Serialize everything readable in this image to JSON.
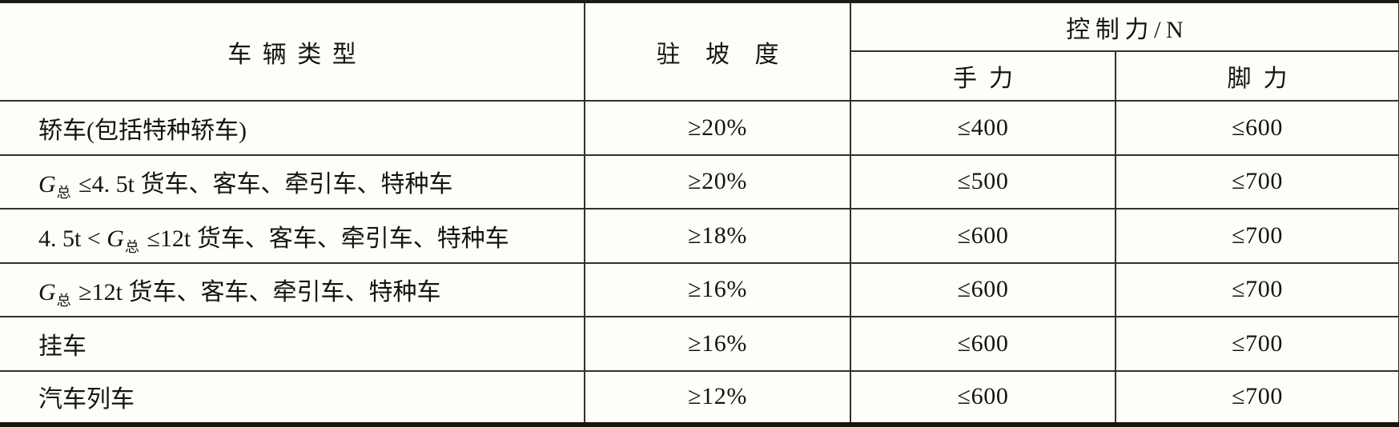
{
  "table": {
    "headers": {
      "vehicle_type": "车辆类型",
      "parking_slope": "驻坡度",
      "control_force": "控制力/N",
      "hand_force": "手力",
      "foot_force": "脚力"
    },
    "rows": [
      {
        "type": [
          [
            "t",
            "轿车(包括特种轿车)"
          ]
        ],
        "slope": "≥20%",
        "hand": "≤400",
        "foot": "≤600"
      },
      {
        "type": [
          [
            "i",
            "G"
          ],
          [
            "sub",
            "总"
          ],
          [
            "t",
            " ≤4. 5t 货车、客车、牵引车、特种车"
          ]
        ],
        "slope": "≥20%",
        "hand": "≤500",
        "foot": "≤700"
      },
      {
        "type": [
          [
            "t",
            "4. 5t < "
          ],
          [
            "i",
            "G"
          ],
          [
            "sub",
            "总"
          ],
          [
            "t",
            " ≤12t 货车、客车、牵引车、特种车"
          ]
        ],
        "slope": "≥18%",
        "hand": "≤600",
        "foot": "≤700"
      },
      {
        "type": [
          [
            "i",
            "G"
          ],
          [
            "sub",
            "总"
          ],
          [
            "t",
            " ≥12t 货车、客车、牵引车、特种车"
          ]
        ],
        "slope": "≥16%",
        "hand": "≤600",
        "foot": "≤700"
      },
      {
        "type": [
          [
            "t",
            "挂车"
          ]
        ],
        "slope": "≥16%",
        "hand": "≤600",
        "foot": "≤700"
      },
      {
        "type": [
          [
            "t",
            "汽车列车"
          ]
        ],
        "slope": "≥12%",
        "hand": "≤600",
        "foot": "≤700"
      }
    ],
    "colors": {
      "background": "#fdfdf9",
      "border_heavy": "#1d1c12",
      "border_thin": "#32312a",
      "text": "#151510"
    }
  }
}
